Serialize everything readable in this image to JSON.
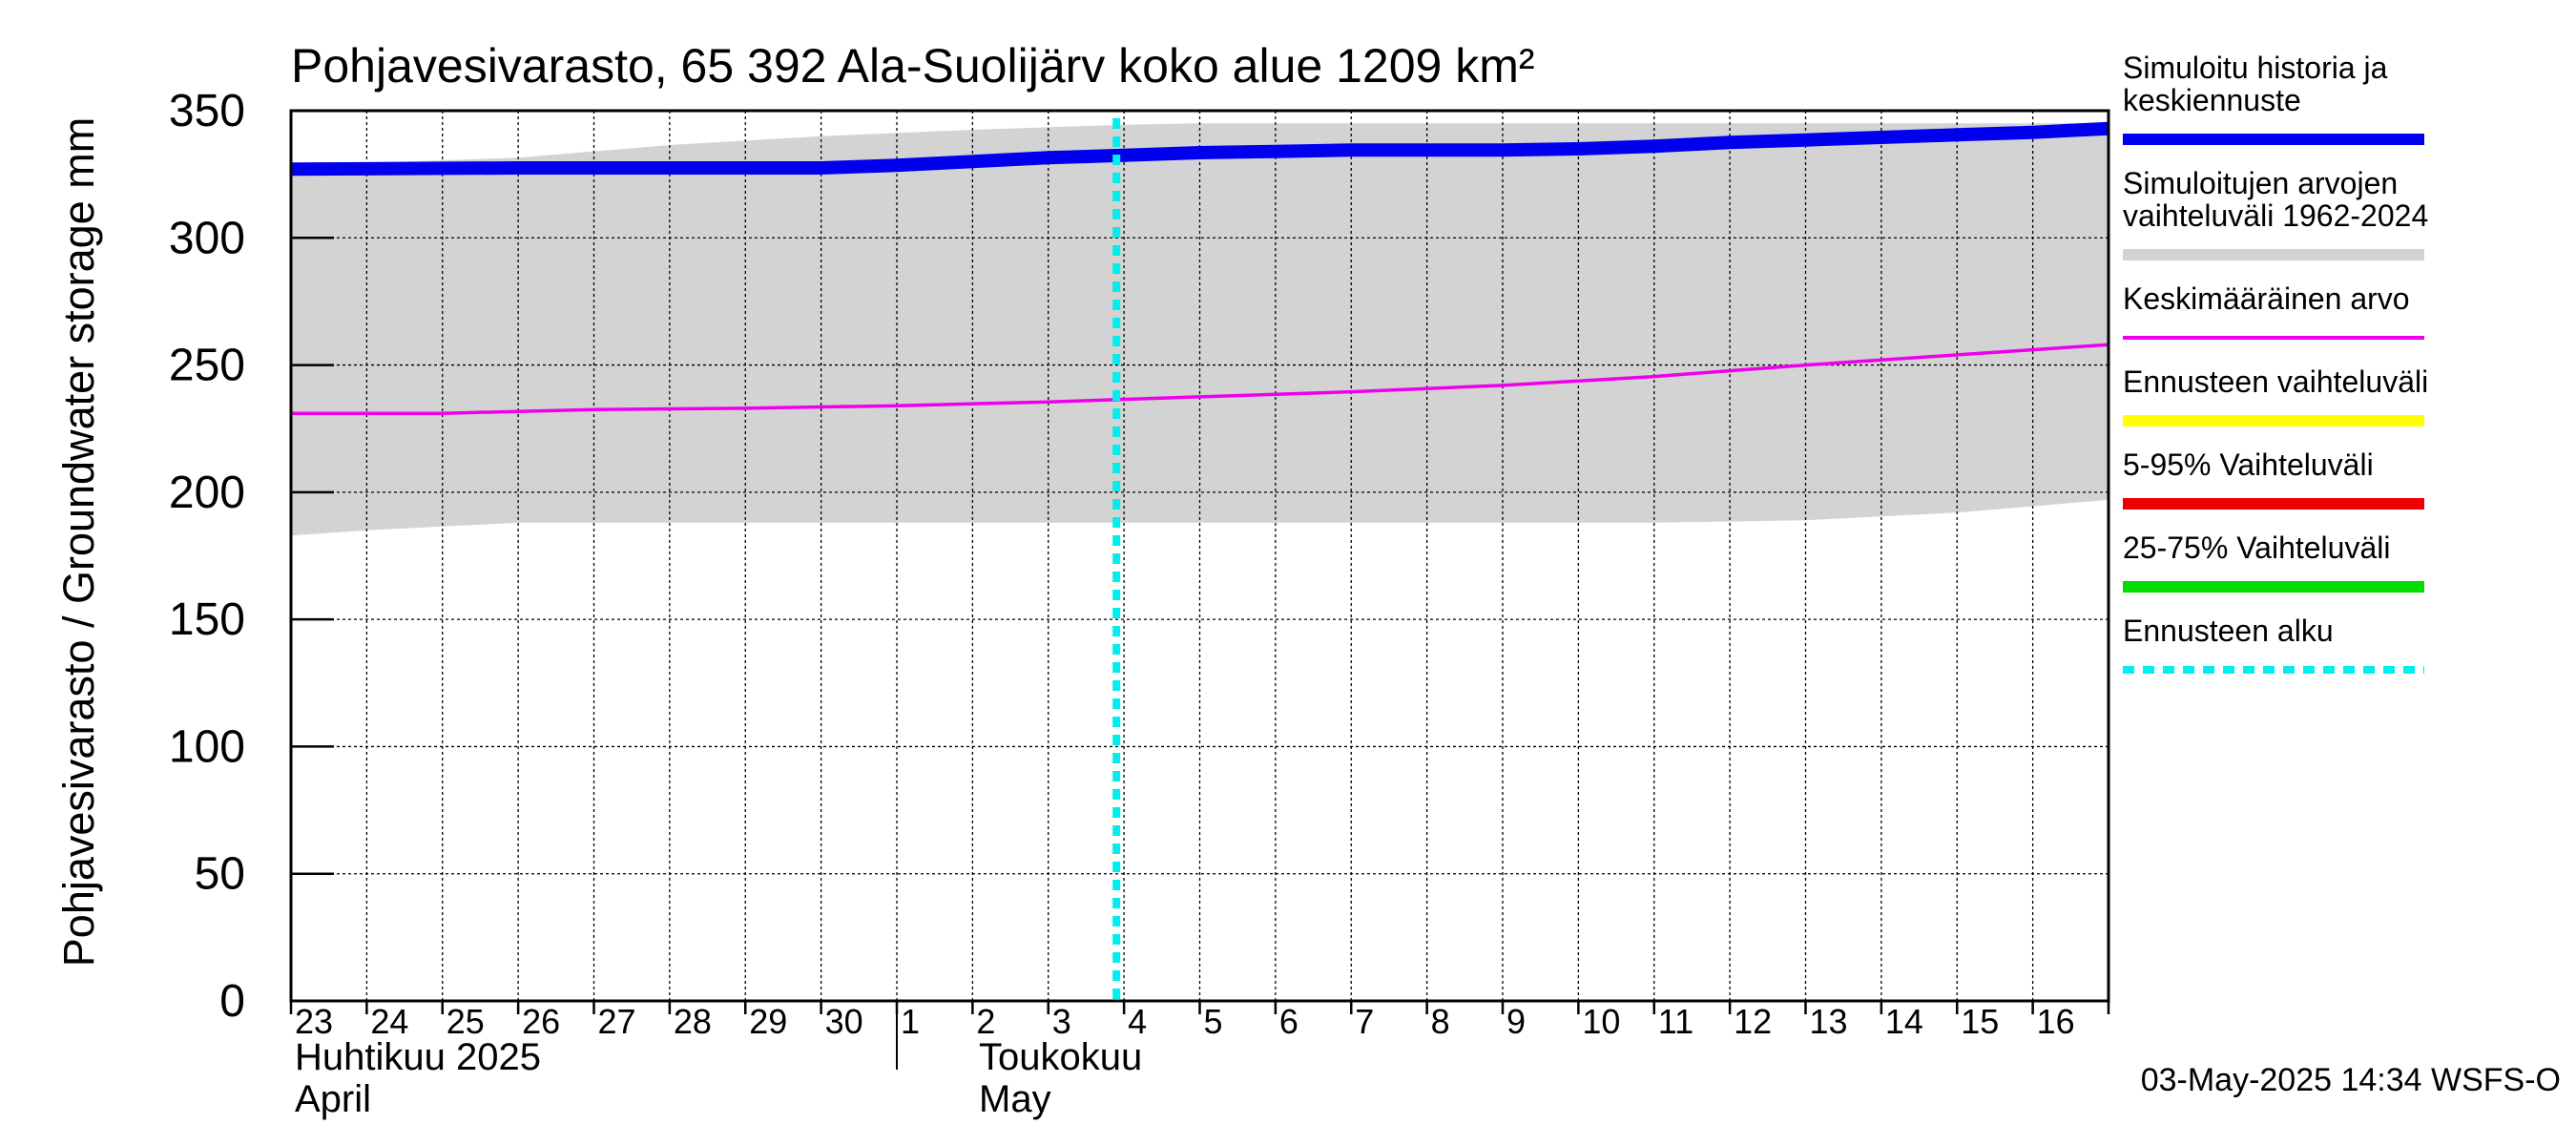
{
  "chart_data": {
    "type": "line",
    "title": "Pohjavesivarasto, 65 392 Ala-Suolijärv koko alue 1209 km²",
    "ylabel": "Pohjavesivarasto / Groundwater storage   mm",
    "ylim": [
      0,
      350
    ],
    "yticks": [
      0,
      50,
      100,
      150,
      200,
      250,
      300,
      350
    ],
    "grid": true,
    "x_start_day": 23,
    "x_end_day": 47,
    "day_labels": [
      "23",
      "24",
      "25",
      "26",
      "27",
      "28",
      "29",
      "30",
      "1",
      "2",
      "3",
      "4",
      "5",
      "6",
      "7",
      "8",
      "9",
      "10",
      "11",
      "12",
      "13",
      "14",
      "15",
      "16"
    ],
    "month_labels": [
      {
        "fi": "Huhtikuu  2025",
        "en": "April",
        "day": 23
      },
      {
        "fi": "Toukokuu",
        "en": "May",
        "day": 31
      }
    ],
    "month_separator_day": 31,
    "forecast_start_day": 33.9,
    "series": [
      {
        "name": "Simuloitu historia ja keskiennuste",
        "color": "#0000ee",
        "x": [
          23,
          26,
          28,
          30,
          31,
          32,
          33,
          34,
          35,
          36,
          37,
          38,
          39,
          40,
          41,
          42,
          43,
          44,
          45,
          46,
          47
        ],
        "values": [
          327,
          327.5,
          327.5,
          327.5,
          328.5,
          330,
          331.5,
          332.5,
          333.5,
          334,
          334.5,
          334.5,
          334.5,
          335,
          336,
          337.5,
          338.5,
          339.5,
          340.5,
          341.5,
          343
        ]
      },
      {
        "name": "Keskimääräinen arvo",
        "color": "#ee00ee",
        "x": [
          23,
          25,
          27,
          29,
          31,
          33,
          35,
          37,
          39,
          41,
          43,
          45,
          47
        ],
        "values": [
          231,
          231,
          232.5,
          233,
          234,
          235.5,
          237.5,
          239.5,
          242,
          245.5,
          250,
          254,
          258
        ]
      }
    ],
    "range_band": {
      "name": "Simuloitujen arvojen vaihteluväli 1962-2024",
      "color": "#d3d3d3",
      "x": [
        23,
        24,
        26,
        28,
        30,
        32,
        34,
        35,
        37,
        39,
        41,
        43,
        45,
        47
      ],
      "upper": [
        328,
        329.5,
        331.5,
        336.5,
        340,
        342.5,
        344.5,
        345,
        345,
        345,
        345,
        345,
        345,
        345
      ],
      "lower": [
        183,
        185,
        188,
        188,
        188,
        188,
        188,
        188,
        188,
        188,
        188,
        189,
        192,
        197
      ]
    },
    "legend": [
      {
        "label": "Simuloitu historia ja keskiennuste",
        "color": "#0000ee",
        "style": "thick"
      },
      {
        "label": "Simuloitujen arvojen vaihteluväli 1962-2024",
        "color": "#d3d3d3",
        "style": "thick"
      },
      {
        "label": "Keskimääräinen arvo",
        "color": "#ee00ee",
        "style": "thin"
      },
      {
        "label": "Ennusteen vaihteluväli",
        "color": "#ffff00",
        "style": "thick"
      },
      {
        "label": "5-95% Vaihteluväli",
        "color": "#ee0000",
        "style": "thick"
      },
      {
        "label": "25-75% Vaihteluväli",
        "color": "#00dd00",
        "style": "thick"
      },
      {
        "label": "Ennusteen alku",
        "color": "#00eeee",
        "style": "dotted"
      }
    ],
    "footer": "03-May-2025 14:34 WSFS-O"
  }
}
